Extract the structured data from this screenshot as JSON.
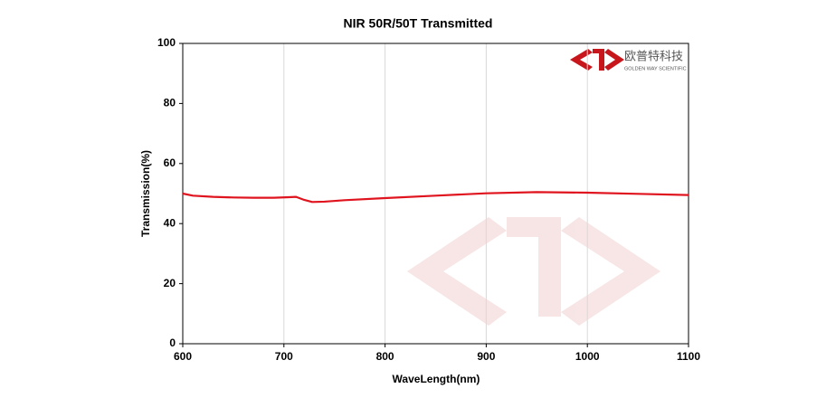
{
  "chart_data": {
    "type": "line",
    "title": "NIR 50R/50T Transmitted",
    "x_label": "WaveLength(nm)",
    "y_label": "Transmission(%)",
    "x": [
      600,
      610,
      630,
      650,
      670,
      690,
      705,
      712,
      720,
      728,
      740,
      760,
      800,
      850,
      900,
      950,
      1000,
      1050,
      1100
    ],
    "values": [
      50.0,
      49.3,
      48.9,
      48.7,
      48.6,
      48.6,
      48.8,
      48.9,
      47.9,
      47.2,
      47.3,
      47.8,
      48.5,
      49.3,
      50.1,
      50.5,
      50.3,
      49.9,
      49.5
    ],
    "color": "#e0141e",
    "xlim": [
      600,
      1100
    ],
    "xticks": [
      600,
      700,
      800,
      900,
      1000,
      1100
    ],
    "ylim": [
      0,
      100
    ],
    "yticks": [
      0,
      20,
      40,
      60,
      80,
      100
    ],
    "grid": "x",
    "logo_text": "欧普特科技",
    "logo_subtext": "GOLDEN WAY SCIENTIFIC"
  }
}
